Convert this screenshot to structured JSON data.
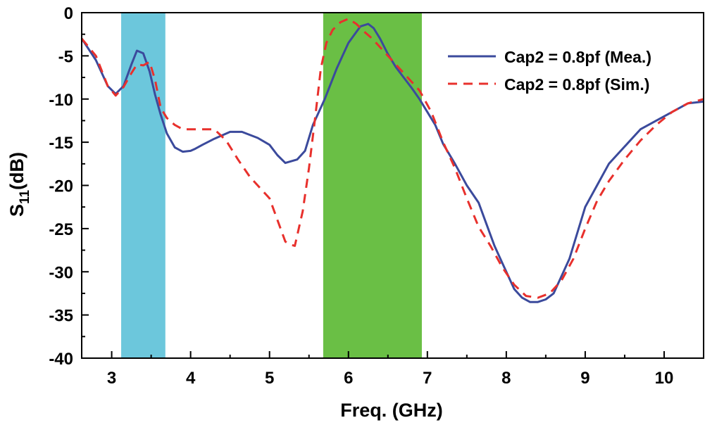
{
  "chart_data": {
    "type": "line",
    "title": "",
    "xlabel": "Freq. (GHz)",
    "ylabel": {
      "base": "S",
      "subscript": "11",
      "suffix": "(dB)"
    },
    "xlim": [
      2.62,
      10.5
    ],
    "ylim": [
      -40,
      0
    ],
    "xticks": [
      3,
      4,
      5,
      6,
      7,
      8,
      9,
      10
    ],
    "yticks": [
      0,
      -5,
      -10,
      -15,
      -20,
      -25,
      -30,
      -35,
      -40
    ],
    "grid": false,
    "legend_position": "top-right",
    "bands": [
      {
        "x0": 3.12,
        "x1": 3.68,
        "color": "#6cc7dc"
      },
      {
        "x0": 5.68,
        "x1": 6.93,
        "color": "#6abf45"
      }
    ],
    "series": [
      {
        "name": "Cap2 = 0.8pf (Mea.)",
        "color": "#3b4a9c",
        "dash": "solid",
        "x": [
          2.62,
          2.8,
          2.95,
          3.05,
          3.15,
          3.25,
          3.32,
          3.4,
          3.48,
          3.55,
          3.62,
          3.7,
          3.8,
          3.9,
          4.0,
          4.05,
          4.15,
          4.3,
          4.5,
          4.65,
          4.85,
          5.0,
          5.1,
          5.2,
          5.35,
          5.45,
          5.55,
          5.7,
          5.85,
          6.0,
          6.15,
          6.25,
          6.32,
          6.4,
          6.5,
          6.6,
          6.7,
          6.8,
          6.9,
          7.0,
          7.1,
          7.2,
          7.35,
          7.5,
          7.65,
          7.75,
          7.85,
          8.0,
          8.1,
          8.2,
          8.3,
          8.4,
          8.5,
          8.6,
          8.7,
          8.8,
          8.9,
          9.0,
          9.15,
          9.3,
          9.5,
          9.7,
          9.9,
          10.1,
          10.3,
          10.5
        ],
        "y": [
          -3.0,
          -5.5,
          -8.5,
          -9.4,
          -8.5,
          -6.0,
          -4.4,
          -4.7,
          -6.8,
          -9.5,
          -11.8,
          -14.0,
          -15.6,
          -16.1,
          -16.0,
          -15.8,
          -15.3,
          -14.6,
          -13.8,
          -13.8,
          -14.5,
          -15.3,
          -16.5,
          -17.4,
          -17.0,
          -16.0,
          -13.0,
          -10.0,
          -6.5,
          -3.5,
          -1.6,
          -1.3,
          -1.8,
          -3.0,
          -4.8,
          -6.3,
          -7.5,
          -8.7,
          -10.0,
          -11.5,
          -13.0,
          -15.2,
          -17.5,
          -20.0,
          -22.0,
          -24.5,
          -27.0,
          -30.0,
          -32.0,
          -33.0,
          -33.5,
          -33.5,
          -33.2,
          -32.5,
          -30.5,
          -28.5,
          -25.5,
          -22.5,
          -20.0,
          -17.5,
          -15.5,
          -13.5,
          -12.5,
          -11.5,
          -10.5,
          -10.3
        ]
      },
      {
        "name": "Cap2 = 0.8pf (Sim.)",
        "color": "#e8302c",
        "dash": "dashed",
        "x": [
          2.62,
          2.8,
          2.95,
          3.05,
          3.15,
          3.25,
          3.32,
          3.4,
          3.48,
          3.55,
          3.62,
          3.7,
          3.8,
          3.9,
          4.0,
          4.15,
          4.3,
          4.45,
          4.6,
          4.75,
          4.85,
          5.0,
          5.1,
          5.2,
          5.25,
          5.32,
          5.42,
          5.5,
          5.58,
          5.65,
          5.72,
          5.8,
          5.9,
          6.0,
          6.1,
          6.2,
          6.3,
          6.45,
          6.6,
          6.75,
          6.9,
          7.05,
          7.2,
          7.35,
          7.5,
          7.65,
          7.8,
          7.95,
          8.1,
          8.25,
          8.4,
          8.55,
          8.7,
          8.85,
          9.0,
          9.15,
          9.3,
          9.5,
          9.7,
          9.9,
          10.1,
          10.3,
          10.5
        ],
        "y": [
          -3.0,
          -5.0,
          -8.5,
          -9.6,
          -8.6,
          -7.0,
          -6.0,
          -6.1,
          -5.7,
          -7.8,
          -11.0,
          -12.2,
          -13.0,
          -13.5,
          -13.5,
          -13.5,
          -13.5,
          -14.8,
          -17.0,
          -19.0,
          -20.0,
          -21.5,
          -24.0,
          -26.5,
          -26.8,
          -27.0,
          -23.0,
          -18.0,
          -12.0,
          -6.5,
          -3.5,
          -2.0,
          -1.1,
          -0.7,
          -1.3,
          -2.2,
          -3.0,
          -4.5,
          -6.0,
          -7.5,
          -9.0,
          -11.5,
          -15.0,
          -18.0,
          -21.5,
          -24.8,
          -27.0,
          -29.5,
          -31.5,
          -32.8,
          -33.0,
          -32.5,
          -31.0,
          -28.5,
          -25.0,
          -21.8,
          -19.5,
          -17.0,
          -14.8,
          -13.0,
          -11.5,
          -10.5,
          -10.0
        ]
      }
    ]
  }
}
